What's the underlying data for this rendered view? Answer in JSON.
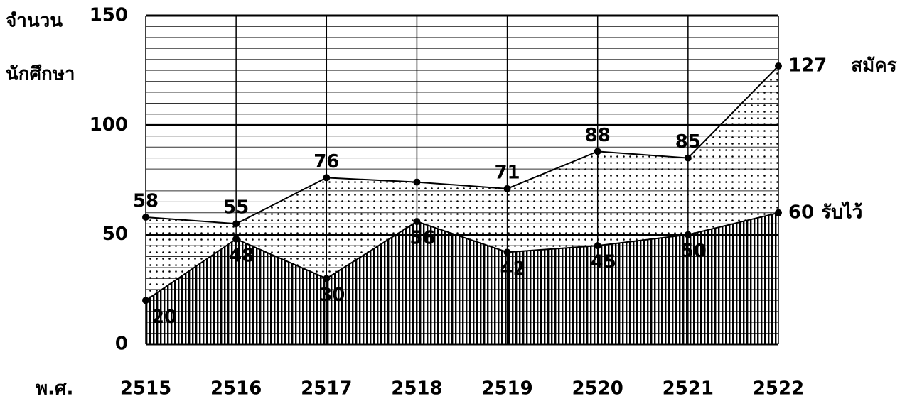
{
  "chart_data": {
    "type": "area",
    "y_label_lines": [
      "จำนวน",
      "นักศึกษา"
    ],
    "x_label": "พ.ศ.",
    "categories": [
      "2515",
      "2516",
      "2517",
      "2518",
      "2519",
      "2520",
      "2521",
      "2522"
    ],
    "series": [
      {
        "name": "สมัคร",
        "color": "#000000",
        "fill": "dots",
        "values": [
          58,
          55,
          76,
          74,
          71,
          88,
          85,
          127
        ],
        "value_labels": [
          "58",
          "55",
          "76",
          null,
          "71",
          "88",
          "85",
          "127"
        ]
      },
      {
        "name": "รับไว้",
        "color": "#000000",
        "fill": "hatch",
        "values": [
          20,
          48,
          30,
          56,
          42,
          45,
          50,
          60
        ],
        "value_labels": [
          "20",
          "48",
          "30",
          "56",
          "42",
          "45",
          "50",
          "60"
        ]
      }
    ],
    "ylim": [
      0,
      150
    ],
    "yticks": [
      0,
      50,
      100,
      150
    ],
    "grid": true,
    "minor_grid_step": 5
  }
}
